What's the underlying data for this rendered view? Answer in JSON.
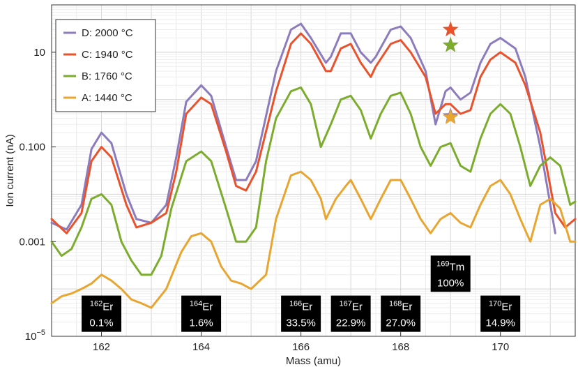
{
  "chart_data": {
    "type": "line",
    "xlabel": "Mass (amu)",
    "ylabel": "Ion current (nA)",
    "xlim": [
      161,
      171.5
    ],
    "ylim": [
      1e-05,
      100
    ],
    "y_scale": "log",
    "grid": true,
    "x_ticks": [
      162,
      164,
      166,
      168,
      170
    ],
    "x_tick_labels": [
      "162",
      "164",
      "166",
      "168",
      "170"
    ],
    "y_ticks": [
      1e-05,
      0.001,
      0.1,
      10
    ],
    "y_tick_labels": [
      "10^-5",
      "0.001",
      "0.100",
      "10"
    ],
    "legend_position": "top-left",
    "series": [
      {
        "name": "D: 2000 °C",
        "color": "#8c7bbd",
        "points": [
          [
            161,
            0.0025
          ],
          [
            161.3,
            0.0018
          ],
          [
            161.6,
            0.006
          ],
          [
            161.8,
            0.09
          ],
          [
            162,
            0.2
          ],
          [
            162.2,
            0.12
          ],
          [
            162.5,
            0.01
          ],
          [
            162.7,
            0.003
          ],
          [
            163,
            0.0025
          ],
          [
            163.3,
            0.006
          ],
          [
            163.5,
            0.06
          ],
          [
            163.7,
            0.9
          ],
          [
            164,
            2.0
          ],
          [
            164.2,
            1.2
          ],
          [
            164.5,
            0.1
          ],
          [
            164.7,
            0.02
          ],
          [
            164.9,
            0.02
          ],
          [
            165.1,
            0.05
          ],
          [
            165.5,
            4
          ],
          [
            165.8,
            30
          ],
          [
            166,
            40
          ],
          [
            166.2,
            20
          ],
          [
            166.5,
            6
          ],
          [
            166.6,
            8
          ],
          [
            166.8,
            25
          ],
          [
            167,
            25
          ],
          [
            167.2,
            10
          ],
          [
            167.4,
            6
          ],
          [
            167.5,
            8
          ],
          [
            167.8,
            30
          ],
          [
            168,
            35
          ],
          [
            168.2,
            20
          ],
          [
            168.5,
            4
          ],
          [
            168.7,
            0.3
          ],
          [
            168.9,
            1.5
          ],
          [
            169,
            1.8
          ],
          [
            169.2,
            1.0
          ],
          [
            169.4,
            1.4
          ],
          [
            169.6,
            6
          ],
          [
            169.8,
            15
          ],
          [
            170,
            20
          ],
          [
            170.3,
            12
          ],
          [
            170.5,
            3
          ],
          [
            170.8,
            0.1
          ],
          [
            171.1,
            0.0015
          ]
        ]
      },
      {
        "name": "C: 1940 °C",
        "color": "#e8522c",
        "points": [
          [
            161,
            0.003
          ],
          [
            161.3,
            0.0015
          ],
          [
            161.6,
            0.004
          ],
          [
            161.8,
            0.05
          ],
          [
            162,
            0.1
          ],
          [
            162.2,
            0.06
          ],
          [
            162.5,
            0.006
          ],
          [
            162.7,
            0.002
          ],
          [
            163,
            0.0025
          ],
          [
            163.3,
            0.004
          ],
          [
            163.5,
            0.03
          ],
          [
            163.7,
            0.5
          ],
          [
            164,
            1.1
          ],
          [
            164.2,
            0.8
          ],
          [
            164.5,
            0.08
          ],
          [
            164.7,
            0.015
          ],
          [
            164.9,
            0.012
          ],
          [
            165.1,
            0.03
          ],
          [
            165.5,
            1.5
          ],
          [
            165.8,
            15
          ],
          [
            166,
            25
          ],
          [
            166.2,
            15
          ],
          [
            166.5,
            4
          ],
          [
            166.6,
            4
          ],
          [
            166.8,
            12
          ],
          [
            167,
            15
          ],
          [
            167.2,
            6
          ],
          [
            167.4,
            3
          ],
          [
            167.5,
            5
          ],
          [
            167.8,
            15
          ],
          [
            168,
            18
          ],
          [
            168.2,
            10
          ],
          [
            168.5,
            3
          ],
          [
            168.7,
            0.5
          ],
          [
            168.9,
            0.8
          ],
          [
            169,
            0.8
          ],
          [
            169.2,
            0.5
          ],
          [
            169.4,
            0.6
          ],
          [
            169.6,
            3
          ],
          [
            169.8,
            7
          ],
          [
            170,
            10
          ],
          [
            170.3,
            6
          ],
          [
            170.5,
            2
          ],
          [
            170.8,
            0.2
          ],
          [
            171.1,
            0.004
          ],
          [
            171.3,
            0.002
          ],
          [
            171.5,
            0.003
          ]
        ]
      },
      {
        "name": "B: 1760 °C",
        "color": "#7cac2e",
        "points": [
          [
            161,
            0.001
          ],
          [
            161.2,
            0.0005
          ],
          [
            161.4,
            0.0007
          ],
          [
            161.6,
            0.002
          ],
          [
            161.8,
            0.008
          ],
          [
            162,
            0.01
          ],
          [
            162.2,
            0.006
          ],
          [
            162.4,
            0.001
          ],
          [
            162.6,
            0.0004
          ],
          [
            162.8,
            0.0002
          ],
          [
            163,
            0.0002
          ],
          [
            163.2,
            0.0005
          ],
          [
            163.4,
            0.005
          ],
          [
            163.7,
            0.05
          ],
          [
            164,
            0.08
          ],
          [
            164.2,
            0.05
          ],
          [
            164.5,
            0.005
          ],
          [
            164.7,
            0.001
          ],
          [
            164.9,
            0.001
          ],
          [
            165.1,
            0.002
          ],
          [
            165.3,
            0.05
          ],
          [
            165.5,
            0.4
          ],
          [
            165.8,
            1.5
          ],
          [
            166,
            1.8
          ],
          [
            166.2,
            0.8
          ],
          [
            166.4,
            0.1
          ],
          [
            166.6,
            0.3
          ],
          [
            166.8,
            1.0
          ],
          [
            167,
            1.2
          ],
          [
            167.2,
            0.6
          ],
          [
            167.4,
            0.15
          ],
          [
            167.6,
            0.5
          ],
          [
            167.8,
            1.2
          ],
          [
            168,
            1.4
          ],
          [
            168.2,
            0.5
          ],
          [
            168.4,
            0.1
          ],
          [
            168.6,
            0.04
          ],
          [
            168.8,
            0.1
          ],
          [
            169,
            0.12
          ],
          [
            169.2,
            0.04
          ],
          [
            169.4,
            0.03
          ],
          [
            169.6,
            0.15
          ],
          [
            169.8,
            0.5
          ],
          [
            170,
            0.8
          ],
          [
            170.2,
            0.5
          ],
          [
            170.4,
            0.1
          ],
          [
            170.6,
            0.015
          ],
          [
            170.8,
            0.04
          ],
          [
            171,
            0.06
          ],
          [
            171.2,
            0.04
          ],
          [
            171.4,
            0.006
          ],
          [
            171.5,
            0.007
          ]
        ]
      },
      {
        "name": "A: 1440 °C",
        "color": "#e8a530",
        "points": [
          [
            161,
            5e-05
          ],
          [
            161.2,
            7e-05
          ],
          [
            161.4,
            8e-05
          ],
          [
            161.6,
            0.0001
          ],
          [
            161.8,
            0.00013
          ],
          [
            162,
            0.0002
          ],
          [
            162.2,
            0.00015
          ],
          [
            162.4,
            0.0001
          ],
          [
            162.6,
            6e-05
          ],
          [
            162.8,
            5e-05
          ],
          [
            163,
            4e-05
          ],
          [
            163.3,
            0.0001
          ],
          [
            163.6,
            0.0006
          ],
          [
            163.8,
            0.0013
          ],
          [
            164,
            0.0015
          ],
          [
            164.2,
            0.001
          ],
          [
            164.4,
            0.0003
          ],
          [
            164.6,
            0.00015
          ],
          [
            164.8,
            0.00013
          ],
          [
            165,
            0.0001
          ],
          [
            165.3,
            0.0002
          ],
          [
            165.5,
            0.003
          ],
          [
            165.8,
            0.025
          ],
          [
            166,
            0.03
          ],
          [
            166.2,
            0.02
          ],
          [
            166.4,
            0.008
          ],
          [
            166.5,
            0.003
          ],
          [
            166.7,
            0.008
          ],
          [
            166.9,
            0.015
          ],
          [
            167,
            0.02
          ],
          [
            167.2,
            0.008
          ],
          [
            167.4,
            0.003
          ],
          [
            167.6,
            0.008
          ],
          [
            167.8,
            0.02
          ],
          [
            168,
            0.02
          ],
          [
            168.2,
            0.008
          ],
          [
            168.4,
            0.003
          ],
          [
            168.6,
            0.0015
          ],
          [
            168.8,
            0.003
          ],
          [
            169,
            0.004
          ],
          [
            169.2,
            0.0025
          ],
          [
            169.4,
            0.002
          ],
          [
            169.6,
            0.006
          ],
          [
            169.8,
            0.015
          ],
          [
            170,
            0.02
          ],
          [
            170.2,
            0.01
          ],
          [
            170.4,
            0.003
          ],
          [
            170.6,
            0.001
          ],
          [
            170.8,
            0.006
          ],
          [
            171,
            0.008
          ],
          [
            171.2,
            0.005
          ],
          [
            171.4,
            0.001
          ],
          [
            171.5,
            0.001
          ]
        ]
      }
    ],
    "markers": [
      {
        "x": 169,
        "y": 30,
        "color": "#e8522c",
        "shape": "star"
      },
      {
        "x": 169,
        "y": 14,
        "color": "#8c7bbd",
        "shape": "star"
      },
      {
        "x": 169,
        "y": 14,
        "color": "#7cac2e",
        "shape": "star"
      },
      {
        "x": 169,
        "y": 0.45,
        "color": "#8c7bbd",
        "shape": "star"
      },
      {
        "x": 169,
        "y": 0.42,
        "color": "#e8a530",
        "shape": "star"
      }
    ],
    "isotope_labels": [
      {
        "element": "Er",
        "mass": "162",
        "percent": "0.1%",
        "x": 162,
        "y": 3e-05
      },
      {
        "element": "Er",
        "mass": "164",
        "percent": "1.6%",
        "x": 164,
        "y": 3e-05
      },
      {
        "element": "Er",
        "mass": "166",
        "percent": "33.5%",
        "x": 166,
        "y": 3e-05
      },
      {
        "element": "Er",
        "mass": "167",
        "percent": "22.9%",
        "x": 167,
        "y": 3e-05
      },
      {
        "element": "Er",
        "mass": "168",
        "percent": "27.0%",
        "x": 168,
        "y": 3e-05
      },
      {
        "element": "Tm",
        "mass": "169",
        "percent": "100%",
        "x": 169,
        "y": 0.00021
      },
      {
        "element": "Er",
        "mass": "170",
        "percent": "14.9%",
        "x": 170,
        "y": 3e-05
      }
    ]
  }
}
